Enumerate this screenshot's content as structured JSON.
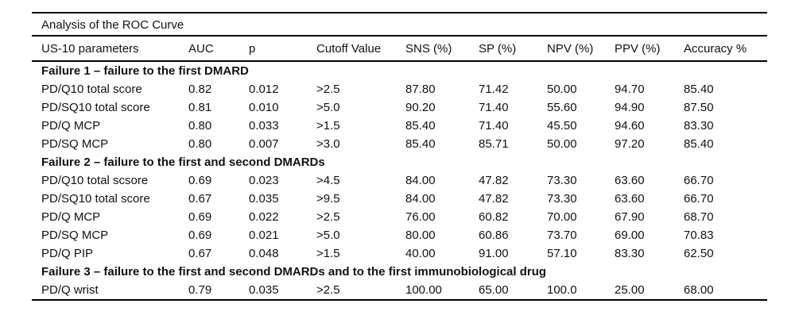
{
  "title": "Analysis of the ROC Curve",
  "colors": {
    "background": "#ffffff",
    "text": "#111111",
    "rule": "#000000"
  },
  "chart_data": {
    "type": "table",
    "title": "Analysis of the ROC Curve",
    "columns": [
      "US-10 parameters",
      "AUC",
      "p",
      "Cutoff Value",
      "SNS (%)",
      "SP (%)",
      "NPV (%)",
      "PPV (%)",
      "Accuracy %"
    ],
    "sections": [
      {
        "header": "Failure 1 – failure to the first DMARD",
        "rows": [
          [
            "PD/Q10 total score",
            "0.82",
            "0.012",
            ">2.5",
            "87.80",
            "71.42",
            "50.00",
            "94.70",
            "85.40"
          ],
          [
            "PD/SQ10 total score",
            "0.81",
            "0.010",
            ">5.0",
            "90.20",
            "71.40",
            "55.60",
            "94.90",
            "87.50"
          ],
          [
            "PD/Q MCP",
            "0.80",
            "0.033",
            ">1.5",
            "85.40",
            "71.40",
            "45.50",
            "94.60",
            "83.30"
          ],
          [
            "PD/SQ MCP",
            "0.80",
            "0.007",
            ">3.0",
            "85.40",
            "85.71",
            "50.00",
            "97.20",
            "85.40"
          ]
        ]
      },
      {
        "header": "Failure 2 – failure to the first and second DMARDs",
        "rows": [
          [
            "PD/Q10 total scsore",
            "0.69",
            "0.023",
            ">4.5",
            "84.00",
            "47.82",
            "73.30",
            "63.60",
            "66.70"
          ],
          [
            "PD/SQ10 total score",
            "0.67",
            "0.035",
            ">9.5",
            "84.00",
            "47.82",
            "73.30",
            "63.60",
            "66.70"
          ],
          [
            "PD/Q MCP",
            "0.69",
            "0.022",
            ">2.5",
            "76.00",
            "60.82",
            "70.00",
            "67.90",
            "68.70"
          ],
          [
            "PD/SQ MCP",
            "0.69",
            "0.021",
            ">5.0",
            "80.00",
            "60.86",
            "73.70",
            "69.00",
            "70.83"
          ],
          [
            "PD/Q PIP",
            "0.67",
            "0.048",
            ">1.5",
            "40.00",
            "91.00",
            "57.10",
            "83.30",
            "62.50"
          ]
        ]
      },
      {
        "header": "Failure 3 – failure to the first and second DMARDs and to the first immunobiological drug",
        "rows": [
          [
            "PD/Q wrist",
            "0.79",
            "0.035",
            ">2.5",
            "100.00",
            "65.00",
            "100.0",
            "25.00",
            "68.00"
          ]
        ]
      }
    ]
  }
}
